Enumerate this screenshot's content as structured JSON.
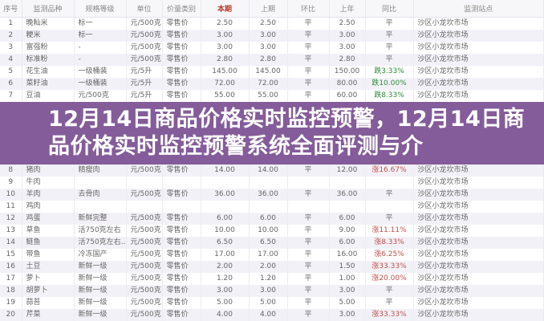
{
  "headers": [
    "序号",
    "监测品种",
    "规格等级",
    "单位",
    "价量类别",
    "本期",
    "上期",
    "环比",
    "上年",
    "同比",
    "监测站点"
  ],
  "rows": [
    [
      "1",
      "晚籼米",
      "标一",
      "元/500克",
      "零售价",
      "2.50",
      "2.50",
      "平",
      "2.50",
      "平",
      "沙区小龙坎市场"
    ],
    [
      "2",
      "粳米",
      "标一",
      "元/500克",
      "零售价",
      "3.00",
      "3.00",
      "平",
      "3.00",
      "平",
      "沙区小龙坎市场"
    ],
    [
      "3",
      "富强粉",
      "-",
      "元/500克",
      "零售价",
      "3.00",
      "3.00",
      "平",
      "3.00",
      "平",
      "沙区小龙坎市场"
    ],
    [
      "4",
      "标准粉",
      "-",
      "元/500克",
      "零售价",
      "2.80",
      "2.80",
      "平",
      "2.80",
      "平",
      "沙区小龙坎市场"
    ],
    [
      "5",
      "花生油",
      "一级桶装",
      "元/5升",
      "零售价",
      "145.00",
      "145.00",
      "平",
      "150.00",
      "跌3.33%",
      "沙区小龙坎市场"
    ],
    [
      "6",
      "菜籽油",
      "一级桶装",
      "元/5升",
      "零售价",
      "72.00",
      "72.00",
      "平",
      "80.00",
      "跌10.00%",
      "沙区小龙坎市场"
    ],
    [
      "7",
      "豆油",
      "元/500克",
      "元/5升",
      "零售价",
      "55.00",
      "55.00",
      "平",
      "60.00",
      "跌8.33%",
      "沙区小龙坎市场"
    ],
    [
      "8",
      "猪肉",
      "精瘦肉",
      "元/500克",
      "零售价",
      "14.00",
      "14.00",
      "平",
      "12.00",
      "涨16.67%",
      "沙区小龙坎市场"
    ],
    [
      "9",
      "牛肉",
      "",
      "",
      "",
      "",
      "",
      "",
      "",
      "",
      "沙区小龙坎市场"
    ],
    [
      "10",
      "羊肉",
      "去骨肉",
      "元/500克",
      "零售价",
      "36.00",
      "36.00",
      "平",
      "36.00",
      "平",
      "沙区小龙坎市场"
    ],
    [
      "11",
      "鸡肉",
      "",
      "",
      "",
      "",
      "",
      "",
      "",
      "",
      "沙区小龙坎市场"
    ],
    [
      "12",
      "鸡蛋",
      "新鲜完整",
      "元/500克",
      "零售价",
      "6.00",
      "6.00",
      "平",
      "6.00",
      "平",
      "沙区小龙坎市场"
    ],
    [
      "13",
      "草鱼",
      "活750克左右",
      "元/500克",
      "零售价",
      "10.00",
      "10.00",
      "平",
      "9.00",
      "涨11.11%",
      "沙区小龙坎市场"
    ],
    [
      "14",
      "鲢鱼",
      "活750克左右...",
      "元/500克",
      "零售价",
      "6.50",
      "6.50",
      "平",
      "6.00",
      "涨8.33%",
      "沙区小龙坎市场"
    ],
    [
      "15",
      "带鱼",
      "冷冻国产",
      "元/500克",
      "零售价",
      "17.00",
      "17.00",
      "平",
      "16.00",
      "涨6.25%",
      "沙区小龙坎市场"
    ],
    [
      "16",
      "土豆",
      "新鲜一级",
      "元/500克",
      "零售价",
      "2.00",
      "2.00",
      "平",
      "1.50",
      "涨33.33%",
      "沙区小龙坎市场"
    ],
    [
      "17",
      "萝卜",
      "新鲜一级",
      "元/500克",
      "零售价",
      "1.20",
      "1.20",
      "平",
      "1.00",
      "涨20.00%",
      "沙区小龙坎市场"
    ],
    [
      "18",
      "胡萝卜",
      "新鲜一级",
      "元/500克",
      "零售价",
      "3.00",
      "3.00",
      "平",
      "3.00",
      "平",
      "沙区小龙坎市场"
    ],
    [
      "19",
      "蒜苔",
      "新鲜一级",
      "元/500克",
      "零售价",
      "5.00",
      "5.00",
      "平",
      "5.00",
      "平",
      "沙区小龙坎市场"
    ],
    [
      "20",
      "芹菜",
      "新鲜一级",
      "元/500克",
      "零售价",
      "4.00",
      "4.00",
      "平",
      "3.00",
      "涨33.33%",
      "沙区小龙坎市场"
    ]
  ],
  "overlay_title": "12月14日商品价格实时监控预警，12月14日商品价格实时监控预警系统全面评测与介",
  "colors": {
    "overlay": "#845c9a",
    "highlight_header": "#c0392b",
    "down": "#2e8b3a",
    "up": "#c0504d"
  }
}
